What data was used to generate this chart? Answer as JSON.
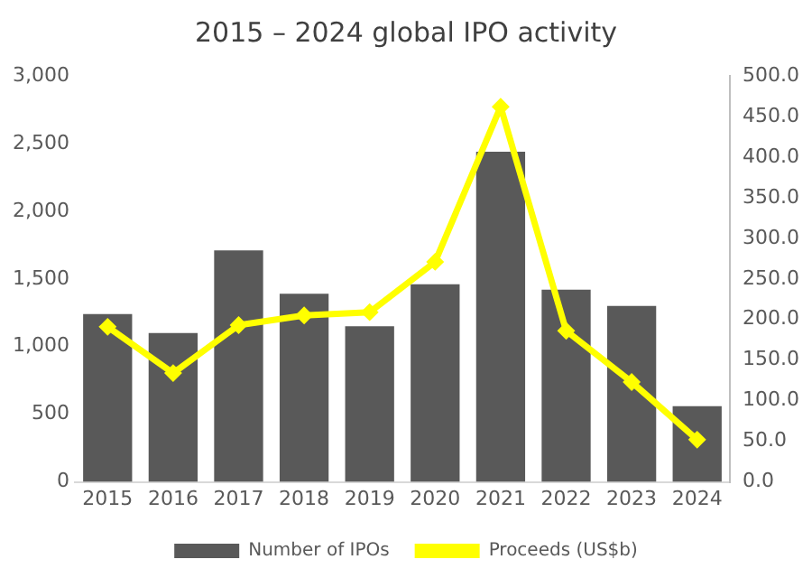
{
  "chart_data": {
    "type": "bar",
    "title": "2015 – 2024 global IPO activity",
    "categories": [
      "2015",
      "2016",
      "2017",
      "2018",
      "2019",
      "2020",
      "2021",
      "2022",
      "2023",
      "2024"
    ],
    "series": [
      {
        "name": "Number of IPOs",
        "color": "#595959",
        "values": [
          1240,
          1100,
          1710,
          1390,
          1150,
          1460,
          2440,
          1420,
          1300,
          560
        ]
      },
      {
        "name": "Proceeds (US$b)",
        "type": "line",
        "axis": "y2",
        "color": "#ffff00",
        "marker": "diamond",
        "values": [
          191,
          134,
          193,
          205,
          209,
          271,
          462,
          186,
          123,
          52
        ]
      }
    ],
    "ylim": [
      0,
      3000
    ],
    "yticks": [
      0,
      {
        "value": 500,
        "label": "500"
      },
      {
        "value": 1000,
        "label": "1,000"
      },
      {
        "value": 1500,
        "label": "1,500"
      },
      {
        "value": 2000,
        "label": "2,000"
      },
      {
        "value": 2500,
        "label": "2,500"
      },
      {
        "value": 3000,
        "label": "3,000"
      }
    ],
    "y2lim": [
      0,
      500
    ],
    "y2ticks": [
      {
        "value": 0,
        "label": "0.0"
      },
      {
        "value": 50,
        "label": "50.0"
      },
      {
        "value": 100,
        "label": "100.0"
      },
      {
        "value": 150,
        "label": "150.0"
      },
      {
        "value": 200,
        "label": "200.0"
      },
      {
        "value": 250,
        "label": "250.0"
      },
      {
        "value": 300,
        "label": "300.0"
      },
      {
        "value": 350,
        "label": "350.0"
      },
      {
        "value": 400,
        "label": "400.0"
      },
      {
        "value": 450,
        "label": "450.0"
      },
      {
        "value": 500,
        "label": "500.0"
      }
    ],
    "grid": false,
    "legend": "bottom"
  }
}
